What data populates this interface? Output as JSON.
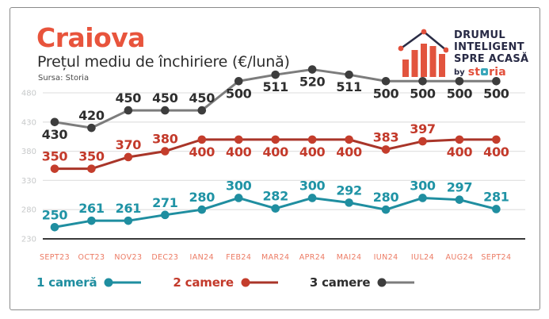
{
  "page": {
    "background": "#ffffff",
    "border_color": "#8a8a8a"
  },
  "header": {
    "title": "Craiova",
    "title_color": "#E8543C",
    "subtitle": "Prețul mediu de închiriere (€/lună)",
    "source": "Sursa: Storia"
  },
  "logo": {
    "line1": "DRUMUL",
    "line2": "INTELIGENT",
    "line3": "SPRE ACASĂ",
    "by": "by",
    "name_pre": "st",
    "name_post": "ria",
    "text_color": "#282A45",
    "bars_color": "#E2543E",
    "roof_color": "#2A2C45",
    "o_color": "#3BA7BB",
    "name_color": "#E2503C"
  },
  "chart_data": {
    "type": "line",
    "title": "Craiova",
    "subtitle": "Prețul mediu de închiriere (€/lună)",
    "source": "Sursa: Storia",
    "categories": [
      "SEPT23",
      "OCT23",
      "NOV23",
      "DEC23",
      "IAN24",
      "FEB24",
      "MAR24",
      "APR24",
      "MAI24",
      "IUN24",
      "IUL24",
      "AUG24",
      "SEPT24"
    ],
    "series": [
      {
        "name": "3 camere",
        "values": [
          430,
          420,
          450,
          450,
          450,
          500,
          511,
          520,
          511,
          500,
          500,
          500,
          500
        ],
        "line_color": "#7C7C7C",
        "dot_color": "#3D3D3D",
        "label_color": "#2E2E2E",
        "label_pos": [
          "below",
          "above",
          "above",
          "above",
          "above",
          "below",
          "below",
          "below",
          "below",
          "below",
          "below",
          "below",
          "below"
        ]
      },
      {
        "name": "2 camere",
        "values": [
          350,
          350,
          370,
          380,
          400,
          400,
          400,
          400,
          400,
          383,
          397,
          400,
          400
        ],
        "line_color": "#A93529",
        "dot_color": "#C43D2C",
        "label_color": "#C33A2B",
        "label_pos": [
          "above",
          "above",
          "above",
          "above",
          "below",
          "below",
          "below",
          "below",
          "below",
          "above",
          "above",
          "below",
          "below"
        ]
      },
      {
        "name": "1 cameră",
        "values": [
          250,
          261,
          261,
          271,
          280,
          300,
          282,
          300,
          292,
          280,
          300,
          297,
          281
        ],
        "line_color": "#1F8EA0",
        "dot_color": "#1F8EA0",
        "label_color": "#1F93A5",
        "label_pos": [
          "above",
          "above",
          "above",
          "above",
          "above",
          "above",
          "above",
          "above",
          "above",
          "above",
          "above",
          "above",
          "above"
        ]
      }
    ],
    "yticks": [
      480,
      430,
      380,
      330,
      280,
      230
    ],
    "ylim": [
      230,
      480
    ],
    "grid": true,
    "axis_color": "#3A3A3A",
    "grid_color": "#E3E3E3",
    "ytick_color": "#C7C9CA",
    "xtick_color": "#EC7B64",
    "legend_position": "bottom",
    "xlabel": "",
    "ylabel": ""
  },
  "legend": {
    "items": [
      {
        "label": "1 cameră",
        "color": "#1F8EA0",
        "dot_color": "#1F8EA0",
        "line_color": "#1F8EA0"
      },
      {
        "label": "2 camere",
        "color": "#C33A2B",
        "dot_color": "#C43D2C",
        "line_color": "#A93529"
      },
      {
        "label": "3 camere",
        "color": "#2E2E2E",
        "dot_color": "#3D3D3D",
        "line_color": "#7C7C7C"
      }
    ]
  }
}
